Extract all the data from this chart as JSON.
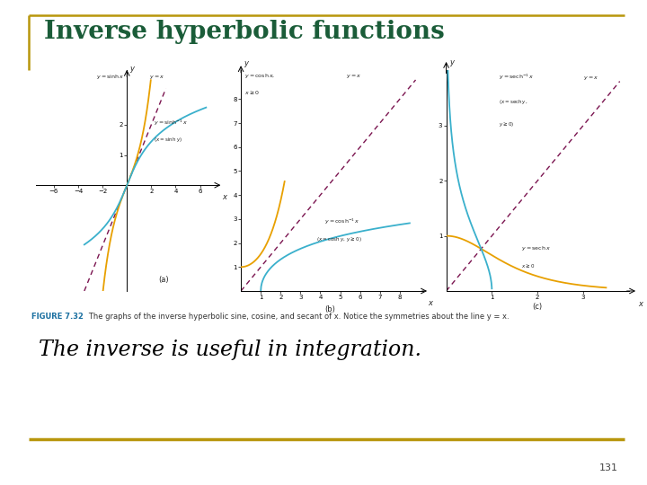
{
  "title": "Inverse hyperbolic functions",
  "title_color": "#1a5c38",
  "border_color": "#b8960c",
  "subtitle": "The inverse is useful in integration.",
  "subtitle_color": "#000000",
  "figure_caption_bold": "FIGURE 7.32",
  "figure_caption_normal": "   The graphs of the inverse hyperbolic sine, cosine, and secant of x. Notice the symmetries about the line y = x.",
  "page_number": "131",
  "bg_color": "#ffffff",
  "sinh_color": "#e8a000",
  "sinhinv_color": "#3ab0cc",
  "cosh_color": "#e8a000",
  "coshinv_color": "#3ab0cc",
  "sech_color": "#e8a000",
  "sechinv_color": "#3ab0cc",
  "yx_color": "#7b1550",
  "axis_color": "#222222",
  "label_color": "#222222"
}
